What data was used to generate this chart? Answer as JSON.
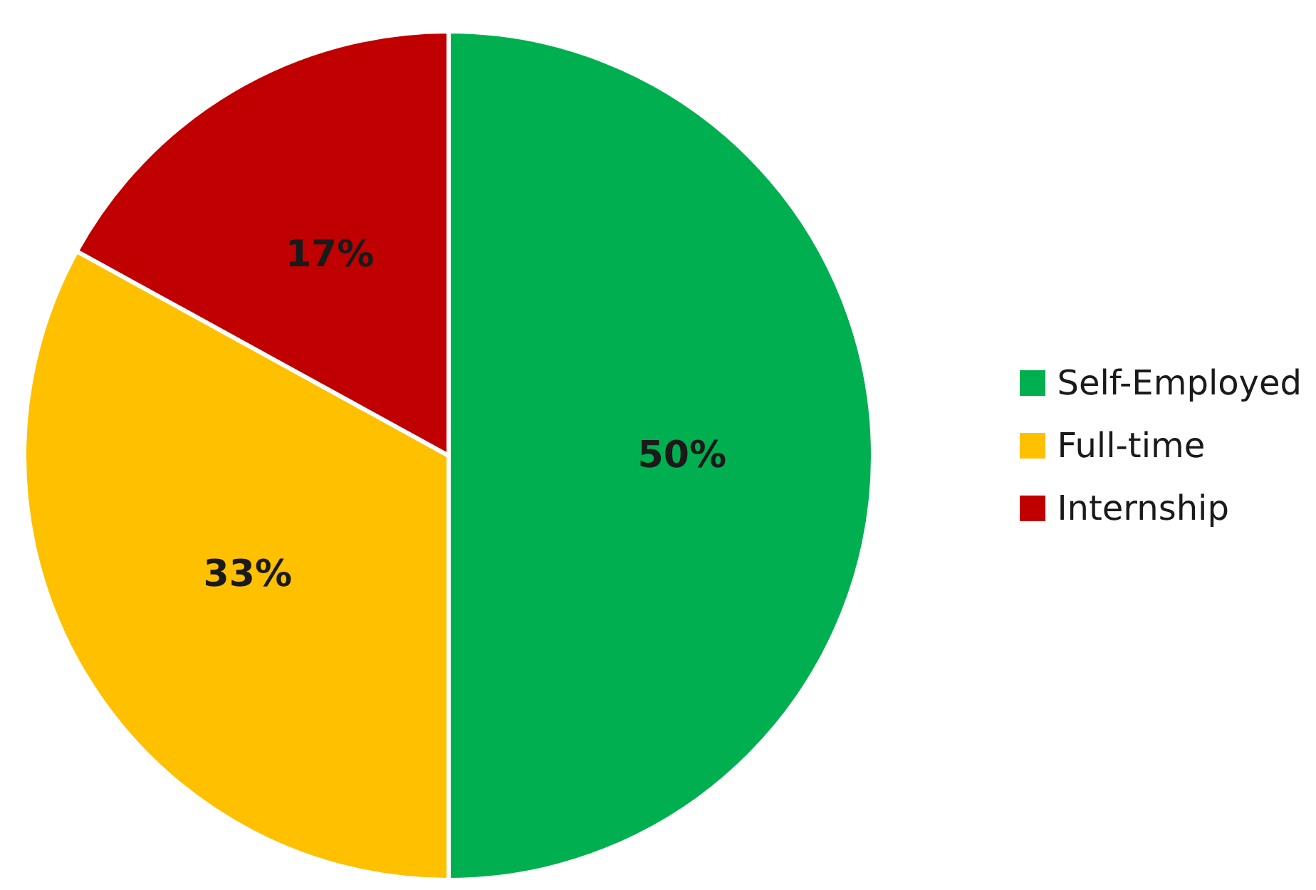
{
  "chart_data": {
    "type": "pie",
    "categories": [
      "Self-Employed",
      "Full-time",
      "Internship"
    ],
    "values": [
      50,
      33,
      17
    ],
    "value_labels": [
      "50%",
      "33%",
      "17%"
    ],
    "colors": [
      "#00b050",
      "#ffc000",
      "#c00000"
    ],
    "legend": "right"
  }
}
